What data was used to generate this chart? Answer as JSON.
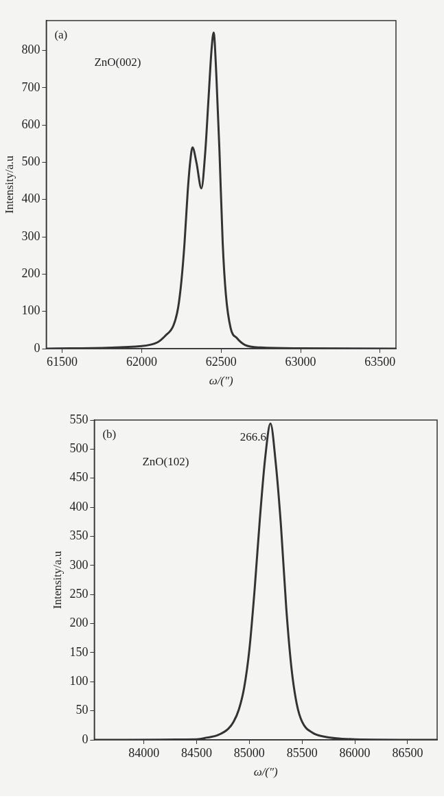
{
  "chart_data": [
    {
      "type": "line",
      "xlabel": "ω/(″)",
      "ylabel": "Intensity/a.u",
      "xlim": [
        61400,
        63600
      ],
      "xticks": [
        61500,
        62000,
        62500,
        63000,
        63500
      ],
      "ylim": [
        0,
        880
      ],
      "yticks": [
        0,
        100,
        200,
        300,
        400,
        500,
        600,
        700,
        800
      ],
      "grid": false,
      "marker": "none",
      "line_style": "solid",
      "annotations": [
        "(a)",
        "ZnO(002)"
      ],
      "series": [
        {
          "color": "#333333",
          "x": [
            61400,
            62000,
            62100,
            62150,
            62200,
            62230,
            62250,
            62270,
            62290,
            62305,
            62320,
            62345,
            62376,
            62400,
            62420,
            62440,
            62453,
            62470,
            62490,
            62510,
            62530,
            62560,
            62600,
            62650,
            62750,
            63000,
            63600
          ],
          "values": [
            0,
            7,
            17,
            35,
            62,
            111,
            180,
            284,
            422,
            499,
            540,
            499,
            430,
            526,
            665,
            803,
            848,
            734,
            526,
            284,
            145,
            55,
            28,
            10,
            3,
            1,
            0
          ]
        }
      ]
    },
    {
      "type": "line",
      "xlabel": "ω/(″)",
      "ylabel": "Intensity/a.u",
      "xlim": [
        83530,
        86780
      ],
      "xticks": [
        84000,
        84500,
        85000,
        85500,
        86000,
        86500
      ],
      "ylim": [
        0,
        550
      ],
      "yticks": [
        0,
        50,
        100,
        150,
        200,
        250,
        300,
        350,
        400,
        450,
        500,
        550
      ],
      "grid": false,
      "marker": "none",
      "line_style": "solid",
      "annotations": [
        "(b)",
        "ZnO(102)",
        {
          "text": "266.6",
          "x": 85200,
          "y": 544
        }
      ],
      "series": [
        {
          "color": "#333333",
          "x": [
            83530,
            84500,
            84600,
            84700,
            84800,
            84850,
            84900,
            84950,
            85000,
            85050,
            85100,
            85150,
            85200,
            85250,
            85300,
            85350,
            85400,
            85450,
            85500,
            85600,
            85700,
            86000,
            86780
          ],
          "values": [
            0,
            1,
            4,
            8,
            19,
            31,
            52,
            89,
            155,
            259,
            381,
            485,
            544,
            476,
            367,
            226,
            122,
            61,
            31,
            12,
            6,
            1,
            0
          ]
        }
      ]
    }
  ]
}
